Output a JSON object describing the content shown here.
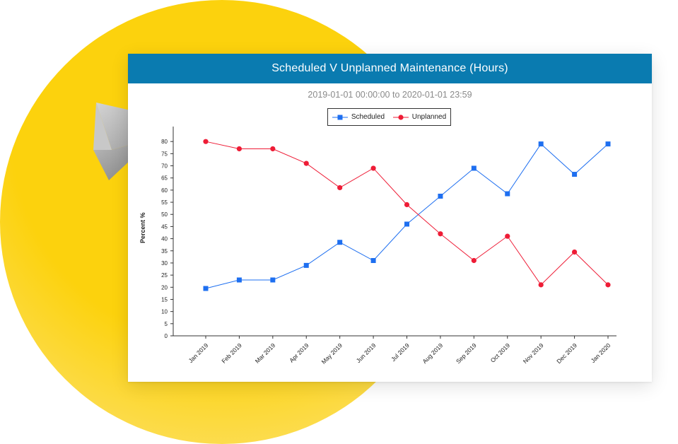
{
  "chart_data": {
    "type": "line",
    "title": "Scheduled V Unplanned Maintenance (Hours)",
    "subtitle": "2019-01-01 00:00:00 to 2020-01-01 23:59",
    "xlabel": "",
    "ylabel": "Percent %",
    "ylim": [
      0,
      85
    ],
    "yticks": [
      "0",
      "5",
      "10",
      "15",
      "20",
      "25",
      "30",
      "35",
      "40",
      "45",
      "50",
      "55",
      "60",
      "65",
      "70",
      "75",
      "80"
    ],
    "categories": [
      "Jan 2019",
      "Feb 2019",
      "Mar 2019",
      "Apr 2019",
      "May 2019",
      "Jun 2019",
      "Jul 2019",
      "Aug 2019",
      "Sep 2019",
      "Oct 2019",
      "Nov 2019",
      "Dec 2019",
      "Jan 2020"
    ],
    "series": [
      {
        "name": "Scheduled",
        "color": "#1e6ff0",
        "marker": "square",
        "values": [
          19.5,
          23,
          23,
          29,
          38.5,
          31,
          46,
          57.5,
          69,
          58.5,
          79,
          66.5,
          79
        ]
      },
      {
        "name": "Unplanned",
        "color": "#ee1c36",
        "marker": "circle",
        "values": [
          80,
          77,
          77,
          71,
          61,
          69,
          54,
          42,
          31,
          41,
          21,
          34.5,
          21
        ]
      }
    ],
    "legend_position": "top-center"
  }
}
